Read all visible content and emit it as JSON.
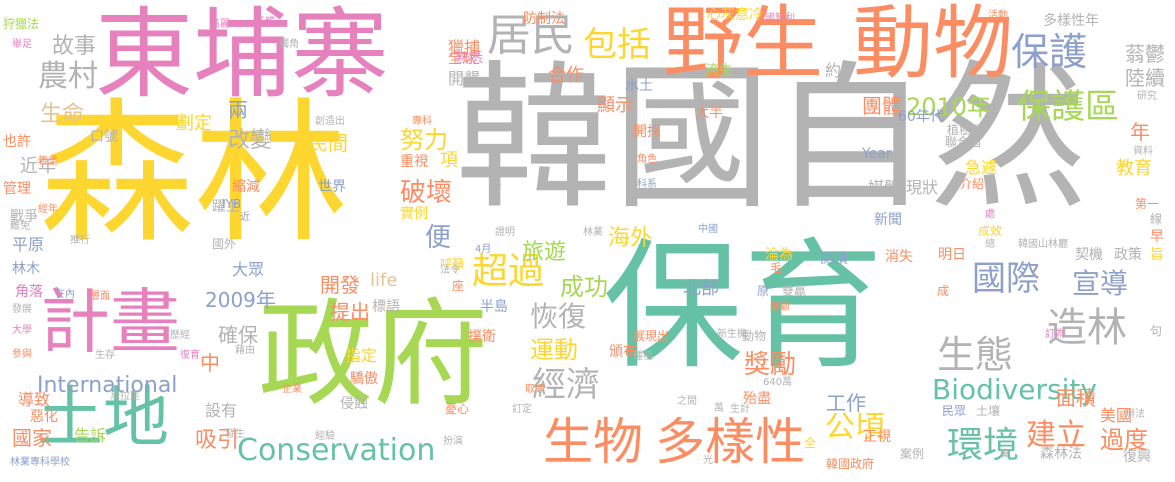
{
  "colors": {
    "pink": "#E681BE",
    "yellow": "#FDD630",
    "gray": "#B3B3B3",
    "orange": "#FC8D62",
    "green": "#A6D854",
    "teal": "#66C2A5",
    "blue": "#8DA0CB",
    "tan": "#E5C494"
  },
  "words": [
    {
      "text": "韓國自然",
      "color": "gray"
    },
    {
      "text": "森林",
      "color": "yellow"
    },
    {
      "text": "保育",
      "color": "teal"
    },
    {
      "text": "政府",
      "color": "green"
    },
    {
      "text": "東埔寨",
      "color": "pink"
    },
    {
      "text": "野生",
      "color": "orange"
    },
    {
      "text": "動物",
      "color": "orange"
    },
    {
      "text": "計畫",
      "color": "pink"
    },
    {
      "text": "土地",
      "color": "teal"
    },
    {
      "text": "生物",
      "color": "orange"
    },
    {
      "text": "多樣性",
      "color": "orange"
    },
    {
      "text": "居民",
      "color": "gray"
    },
    {
      "text": "包括",
      "color": "yellow"
    },
    {
      "text": "保護",
      "color": "blue"
    },
    {
      "text": "保護區",
      "color": "green"
    },
    {
      "text": "2010年",
      "color": "green"
    },
    {
      "text": "國際",
      "color": "blue"
    },
    {
      "text": "宣導",
      "color": "blue"
    },
    {
      "text": "造林",
      "color": "gray"
    },
    {
      "text": "生態",
      "color": "gray"
    },
    {
      "text": "Biodiversity",
      "color": "teal"
    },
    {
      "text": "Conservation",
      "color": "teal"
    },
    {
      "text": "International",
      "color": "blue"
    },
    {
      "text": "環境",
      "color": "teal"
    },
    {
      "text": "建立",
      "color": "orange"
    },
    {
      "text": "過度",
      "color": "orange"
    },
    {
      "text": "公頃",
      "color": "yellow"
    },
    {
      "text": "經濟",
      "color": "gray"
    },
    {
      "text": "超過",
      "color": "yellow"
    },
    {
      "text": "成功",
      "color": "green"
    },
    {
      "text": "恢復",
      "color": "gray"
    },
    {
      "text": "運動",
      "color": "yellow"
    },
    {
      "text": "獎勵",
      "color": "orange"
    },
    {
      "text": "故事",
      "color": "gray"
    },
    {
      "text": "農村",
      "color": "gray"
    },
    {
      "text": "生命",
      "color": "tan"
    },
    {
      "text": "改變",
      "color": "gray"
    },
    {
      "text": "民間",
      "color": "yellow"
    },
    {
      "text": "努力",
      "color": "yellow"
    },
    {
      "text": "破壞",
      "color": "orange"
    },
    {
      "text": "旅遊",
      "color": "green"
    },
    {
      "text": "海外",
      "color": "yellow"
    },
    {
      "text": "開發",
      "color": "orange"
    },
    {
      "text": "提出",
      "color": "orange"
    },
    {
      "text": "2009年",
      "color": "blue"
    },
    {
      "text": "確保",
      "color": "gray"
    },
    {
      "text": "吸引",
      "color": "orange"
    },
    {
      "text": "國家",
      "color": "orange"
    },
    {
      "text": "告訴",
      "color": "green"
    },
    {
      "text": "工作",
      "color": "blue"
    },
    {
      "text": "面積",
      "color": "orange"
    },
    {
      "text": "美國",
      "color": "orange"
    },
    {
      "text": "團體",
      "color": "orange"
    },
    {
      "text": "教育",
      "color": "yellow"
    },
    {
      "text": "狩獵法",
      "color": "green"
    },
    {
      "text": "獵捕",
      "color": "orange"
    },
    {
      "text": "防制法",
      "color": "orange"
    },
    {
      "text": "心灰意冷",
      "color": "yellow"
    },
    {
      "text": "多樣性年",
      "color": "gray"
    },
    {
      "text": "蓊鬱",
      "color": "gray"
    },
    {
      "text": "陸續",
      "color": "gray"
    },
    {
      "text": "合作",
      "color": "orange"
    },
    {
      "text": "顯示",
      "color": "orange"
    },
    {
      "text": "開墾",
      "color": "gray"
    },
    {
      "text": "北部",
      "color": "blue"
    },
    {
      "text": "世界",
      "color": "blue"
    },
    {
      "text": "大眾",
      "color": "blue"
    },
    {
      "text": "平原",
      "color": "blue"
    },
    {
      "text": "林木",
      "color": "blue"
    },
    {
      "text": "媒體",
      "color": "gray"
    },
    {
      "text": "現狀",
      "color": "gray"
    },
    {
      "text": "新聞",
      "color": "blue"
    },
    {
      "text": "life",
      "color": "tan"
    },
    {
      "text": "Year",
      "color": "blue"
    },
    {
      "text": "60年代",
      "color": "blue"
    },
    {
      "text": "近年",
      "color": "gray"
    },
    {
      "text": "年",
      "color": "orange"
    },
    {
      "text": "項",
      "color": "yellow"
    },
    {
      "text": "便",
      "color": "blue"
    },
    {
      "text": "兩",
      "color": "blue"
    },
    {
      "text": "中",
      "color": "orange"
    },
    {
      "text": "約",
      "color": "gray"
    },
    {
      "text": "森林法",
      "color": "gray"
    },
    {
      "text": "復興",
      "color": "gray"
    },
    {
      "text": "韓國政府",
      "color": "orange"
    },
    {
      "text": "林業專科學校",
      "color": "blue"
    },
    {
      "text": "急遽",
      "color": "yellow"
    },
    {
      "text": "聯合國",
      "color": "gray"
    },
    {
      "text": "介紹",
      "color": "orange"
    },
    {
      "text": "明日",
      "color": "orange"
    },
    {
      "text": "消失",
      "color": "orange"
    },
    {
      "text": "閱讀",
      "color": "blue"
    },
    {
      "text": "淪為",
      "color": "yellow"
    },
    {
      "text": "契機",
      "color": "gray"
    },
    {
      "text": "政策",
      "color": "gray"
    },
    {
      "text": "旨",
      "color": "yellow"
    },
    {
      "text": "早",
      "color": "orange"
    },
    {
      "text": "線",
      "color": "gray"
    },
    {
      "text": "民眾",
      "color": "blue"
    },
    {
      "text": "土壤",
      "color": "gray"
    },
    {
      "text": "正視",
      "color": "orange"
    },
    {
      "text": "案例",
      "color": "gray"
    },
    {
      "text": "殆盡",
      "color": "orange"
    },
    {
      "text": "頒布",
      "color": "orange"
    },
    {
      "text": "撲衛",
      "color": "orange"
    },
    {
      "text": "指定",
      "color": "yellow"
    },
    {
      "text": "驕傲",
      "color": "orange"
    },
    {
      "text": "侵蝕",
      "color": "gray"
    },
    {
      "text": "設有",
      "color": "gray"
    },
    {
      "text": "導致",
      "color": "orange"
    },
    {
      "text": "惡化",
      "color": "orange"
    },
    {
      "text": "角落",
      "color": "pink"
    },
    {
      "text": "發展",
      "color": "gray"
    },
    {
      "text": "大學",
      "color": "pink"
    },
    {
      "text": "參與",
      "color": "orange"
    },
    {
      "text": "戰爭",
      "color": "gray"
    },
    {
      "text": "管理",
      "color": "orange"
    },
    {
      "text": "也許",
      "color": "orange"
    },
    {
      "text": "劃定",
      "color": "yellow"
    },
    {
      "text": "縮減",
      "color": "orange"
    },
    {
      "text": "躍上",
      "color": "gray"
    },
    {
      "text": "重視",
      "color": "orange"
    },
    {
      "text": "實例",
      "color": "yellow"
    },
    {
      "text": "呼籲",
      "color": "yellow"
    },
    {
      "text": "半島",
      "color": "blue"
    },
    {
      "text": "標語",
      "color": "gray"
    },
    {
      "text": "口號",
      "color": "gray"
    },
    {
      "text": "高麗",
      "color": "pink"
    },
    {
      "text": "抵觸",
      "color": "pink"
    },
    {
      "text": "國智利",
      "color": "pink"
    },
    {
      "text": "活動",
      "color": "orange"
    },
    {
      "text": "全球",
      "color": "orange"
    },
    {
      "text": "熟悉",
      "color": "pink"
    },
    {
      "text": "流失",
      "color": "green"
    },
    {
      "text": "水土",
      "color": "blue"
    },
    {
      "text": "開採",
      "color": "orange"
    },
    {
      "text": "大半",
      "color": "orange"
    },
    {
      "text": "植樹月",
      "color": "gray"
    },
    {
      "text": "研究",
      "color": "gray"
    },
    {
      "text": "資料",
      "color": "gray"
    },
    {
      "text": "專科",
      "color": "orange"
    },
    {
      "text": "創造出",
      "color": "gray"
    },
    {
      "text": "角色",
      "color": "orange"
    },
    {
      "text": "科系",
      "color": "blue"
    },
    {
      "text": "正",
      "color": "gray"
    },
    {
      "text": "第一",
      "color": "orange"
    },
    {
      "text": "處",
      "color": "pink"
    },
    {
      "text": "成效",
      "color": "yellow"
    },
    {
      "text": "總",
      "color": "gray"
    },
    {
      "text": "韓國山林廳",
      "color": "gray"
    },
    {
      "text": "中國",
      "color": "blue"
    },
    {
      "text": "證明",
      "color": "gray"
    },
    {
      "text": "林業",
      "color": "gray"
    },
    {
      "text": "法令",
      "color": "gray"
    },
    {
      "text": "座",
      "color": "orange"
    },
    {
      "text": "4月",
      "color": "blue"
    },
    {
      "text": "推行",
      "color": "gray"
    },
    {
      "text": "難免",
      "color": "gray"
    },
    {
      "text": "經年",
      "color": "orange"
    },
    {
      "text": "輕重",
      "color": "orange"
    },
    {
      "text": "IYB",
      "color": "blue"
    },
    {
      "text": "近",
      "color": "blue"
    },
    {
      "text": "國外",
      "color": "gray"
    },
    {
      "text": "在內",
      "color": "blue"
    },
    {
      "text": "層面",
      "color": "orange"
    },
    {
      "text": "毛",
      "color": "orange"
    },
    {
      "text": "原",
      "color": "blue"
    },
    {
      "text": "雙贏",
      "color": "gray"
    },
    {
      "text": "兼顧",
      "color": "orange"
    },
    {
      "text": "成",
      "color": "orange"
    },
    {
      "text": "訂為",
      "color": "pink"
    },
    {
      "text": "句",
      "color": "gray"
    },
    {
      "text": "新生機",
      "color": "gray"
    },
    {
      "text": "動物",
      "color": "gray"
    },
    {
      "text": "展現出",
      "color": "orange"
    },
    {
      "text": "種植",
      "color": "gray"
    },
    {
      "text": "取締",
      "color": "orange"
    },
    {
      "text": "訂定",
      "color": "gray"
    },
    {
      "text": "憂心",
      "color": "orange"
    },
    {
      "text": "企業",
      "color": "orange"
    },
    {
      "text": "烏拉圭",
      "color": "gray"
    },
    {
      "text": "歷經",
      "color": "gray"
    },
    {
      "text": "藉由",
      "color": "gray"
    },
    {
      "text": "生存",
      "color": "gray"
    },
    {
      "text": "復育",
      "color": "pink"
    },
    {
      "text": "發生",
      "color": "gray"
    },
    {
      "text": "經驗",
      "color": "gray"
    },
    {
      "text": "扮演",
      "color": "gray"
    },
    {
      "text": "之間",
      "color": "gray"
    },
    {
      "text": "萬",
      "color": "gray"
    },
    {
      "text": "生計",
      "color": "gray"
    },
    {
      "text": "640萬",
      "color": "gray"
    },
    {
      "text": "全",
      "color": "yellow"
    },
    {
      "text": "光",
      "color": "gray"
    },
    {
      "text": "辦法",
      "color": "gray"
    },
    {
      "text": "棄",
      "color": "gray"
    },
    {
      "text": "舉足",
      "color": "pink"
    },
    {
      "text": "觸角",
      "color": "gray"
    }
  ]
}
